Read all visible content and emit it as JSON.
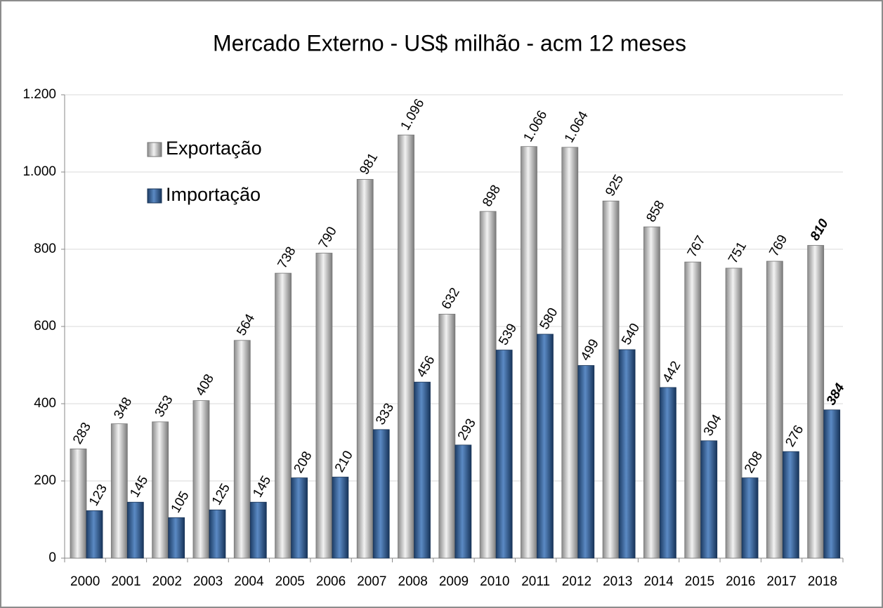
{
  "chart_data": {
    "type": "bar",
    "title": "Mercado Externo - US$ milhão - acm 12 meses",
    "categories": [
      "2000",
      "2001",
      "2002",
      "2003",
      "2004",
      "2005",
      "2006",
      "2007",
      "2008",
      "2009",
      "2010",
      "2011",
      "2012",
      "2013",
      "2014",
      "2015",
      "2016",
      "2017",
      "2018"
    ],
    "series": [
      {
        "name": "Exportação",
        "color": "#b0b0b0",
        "values": [
          283,
          348,
          353,
          408,
          564,
          738,
          790,
          981,
          1096,
          632,
          898,
          1066,
          1064,
          925,
          858,
          767,
          751,
          769,
          810
        ],
        "value_labels": [
          "283",
          "348",
          "353",
          "408",
          "564",
          "738",
          "790",
          "981",
          "1.096",
          "632",
          "898",
          "1.066",
          "1.064",
          "925",
          "858",
          "767",
          "751",
          "769",
          "810"
        ]
      },
      {
        "name": "Importação",
        "color": "#2e5c95",
        "values": [
          123,
          145,
          105,
          125,
          145,
          208,
          210,
          333,
          456,
          293,
          539,
          580,
          499,
          540,
          442,
          304,
          208,
          276,
          384
        ]
      }
    ],
    "ylim": [
      0,
      1200
    ],
    "yticks": [
      0,
      200,
      400,
      600,
      800,
      {
        "value": 1000,
        "label": "1.000"
      },
      {
        "value": 1200,
        "label": "1.200"
      }
    ],
    "grid": true,
    "legend": "upper left"
  }
}
